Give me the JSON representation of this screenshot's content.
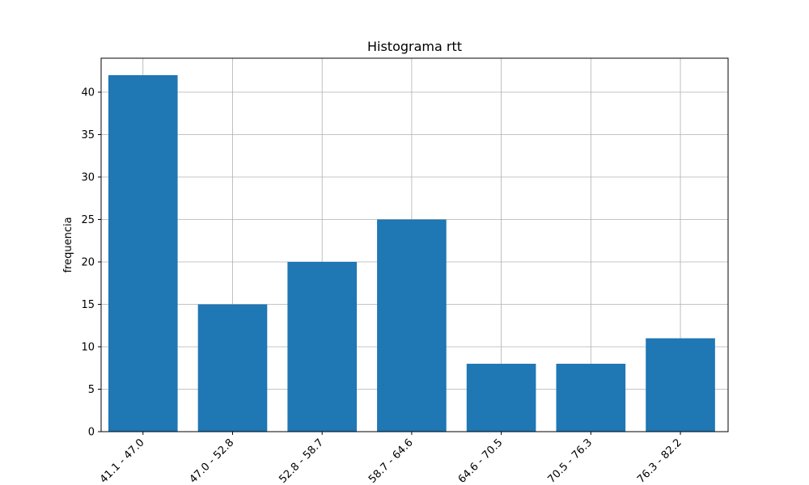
{
  "chart_data": {
    "type": "bar",
    "title": "Histograma rtt",
    "xlabel": "",
    "ylabel": "frequencia",
    "categories": [
      "41.1 - 47.0",
      "47.0 - 52.8",
      "52.8 - 58.7",
      "58.7 - 64.6",
      "64.6 - 70.5",
      "70.5 - 76.3",
      "76.3 - 82.2"
    ],
    "values": [
      42,
      15,
      20,
      25,
      8,
      8,
      11
    ],
    "ylim": [
      0,
      44
    ],
    "yticks": [
      0,
      5,
      10,
      15,
      20,
      25,
      30,
      35,
      40
    ],
    "grid": true,
    "bar_color": "#1f77b4",
    "grid_color": "#b0b0b0"
  }
}
